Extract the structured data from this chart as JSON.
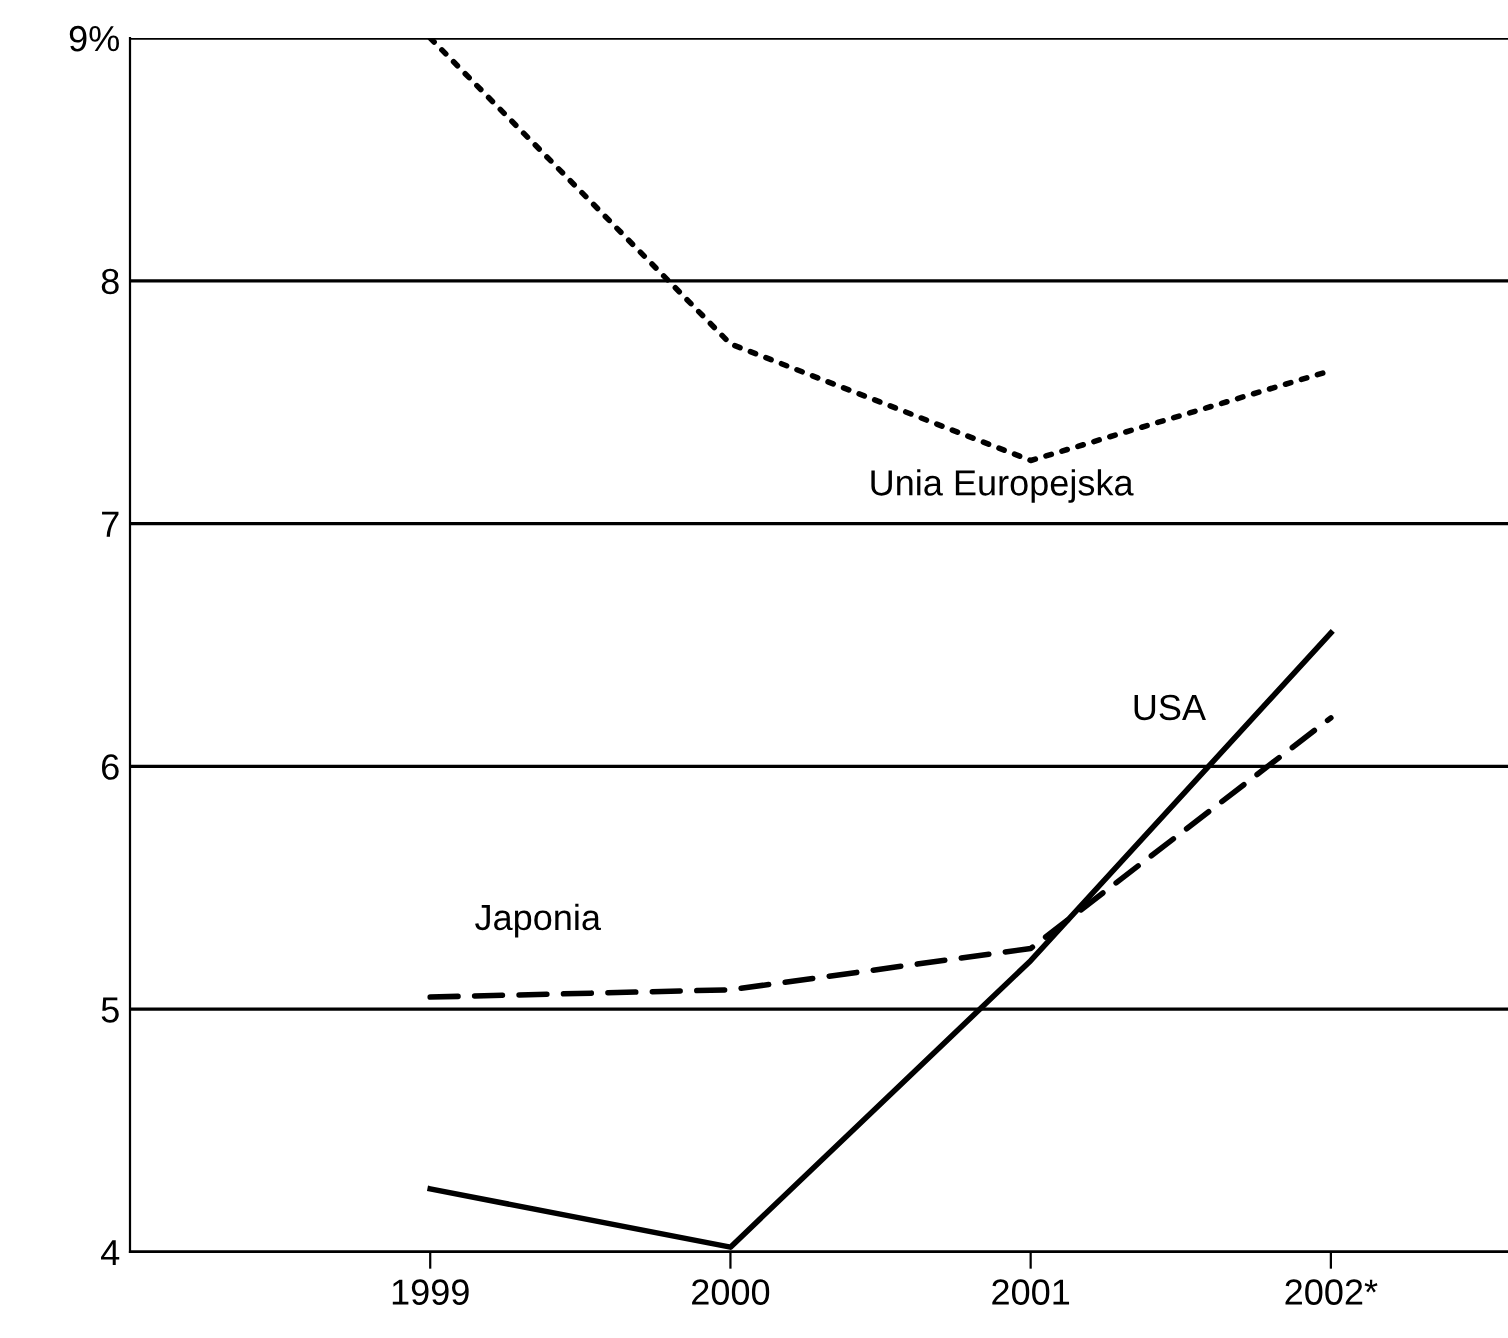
{
  "chart_data": {
    "type": "line",
    "categories": [
      "1999",
      "2000",
      "2001",
      "2002*"
    ],
    "series": [
      {
        "name": "Unia Europejska",
        "color": "#000000",
        "line_style": "dotted",
        "values": [
          9.0,
          7.74,
          7.26,
          7.63
        ]
      },
      {
        "name": "Japonia",
        "color": "#000000",
        "line_style": "dashed",
        "values": [
          5.05,
          5.08,
          5.25,
          6.2
        ]
      },
      {
        "name": "USA",
        "color": "#000000",
        "line_style": "solid",
        "values": [
          4.26,
          4.02,
          5.2,
          6.55
        ]
      }
    ],
    "ylim": [
      4,
      9
    ],
    "yticks": [
      4,
      5,
      6,
      7,
      8,
      {
        "value": 9,
        "label": "9%"
      }
    ],
    "grid": "y",
    "legend": false
  }
}
